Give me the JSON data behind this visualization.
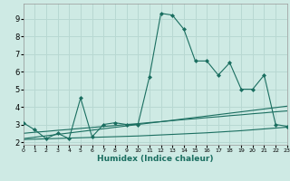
{
  "xlabel": "Humidex (Indice chaleur)",
  "background_color": "#ceeae4",
  "grid_color": "#b8d8d2",
  "line_color": "#1a6e60",
  "x_data": [
    0,
    1,
    2,
    3,
    4,
    5,
    6,
    7,
    8,
    9,
    10,
    11,
    12,
    13,
    14,
    15,
    16,
    17,
    18,
    19,
    20,
    21,
    22,
    23
  ],
  "y_main": [
    3.1,
    2.7,
    2.2,
    2.5,
    2.2,
    4.5,
    2.3,
    3.0,
    3.1,
    3.0,
    3.0,
    5.7,
    9.3,
    9.2,
    8.4,
    6.6,
    6.6,
    5.8,
    6.5,
    5.0,
    5.0,
    5.8,
    3.0,
    2.9
  ],
  "y_trend1": [
    2.5,
    2.56,
    2.61,
    2.67,
    2.72,
    2.78,
    2.83,
    2.89,
    2.94,
    3.0,
    3.05,
    3.11,
    3.16,
    3.22,
    3.28,
    3.33,
    3.39,
    3.44,
    3.5,
    3.55,
    3.61,
    3.66,
    3.72,
    3.77
  ],
  "y_trend2": [
    2.2,
    2.28,
    2.36,
    2.44,
    2.52,
    2.6,
    2.68,
    2.76,
    2.84,
    2.92,
    3.0,
    3.08,
    3.16,
    3.24,
    3.32,
    3.4,
    3.48,
    3.56,
    3.64,
    3.72,
    3.8,
    3.88,
    3.96,
    4.04
  ],
  "y_flat": [
    2.15,
    2.17,
    2.19,
    2.21,
    2.23,
    2.25,
    2.27,
    2.29,
    2.31,
    2.33,
    2.35,
    2.38,
    2.41,
    2.44,
    2.47,
    2.5,
    2.53,
    2.57,
    2.61,
    2.65,
    2.7,
    2.75,
    2.8,
    2.85
  ],
  "xlim": [
    0,
    23
  ],
  "ylim": [
    1.85,
    9.85
  ],
  "yticks": [
    2,
    3,
    4,
    5,
    6,
    7,
    8,
    9
  ],
  "xticks": [
    0,
    1,
    2,
    3,
    4,
    5,
    6,
    7,
    8,
    9,
    10,
    11,
    12,
    13,
    14,
    15,
    16,
    17,
    18,
    19,
    20,
    21,
    22,
    23
  ]
}
